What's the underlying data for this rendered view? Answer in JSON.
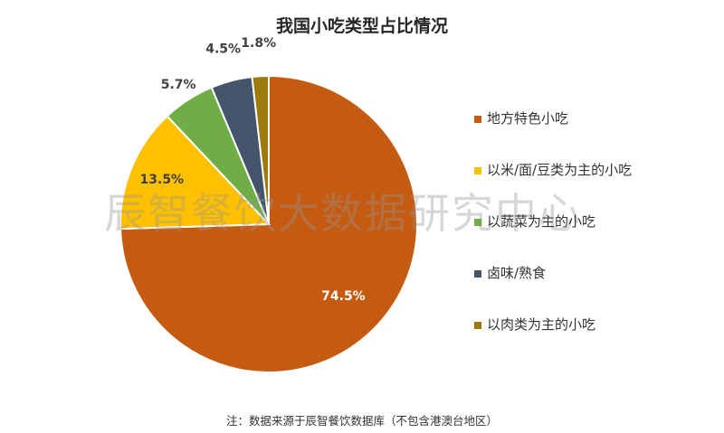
{
  "chart_data": {
    "type": "pie",
    "title": "我国小吃类型占比情况",
    "categories": [
      "地方特色小吃",
      "以米/面/豆类为主的小吃",
      "以蔬菜为主的小吃",
      "卤味/熟食",
      "以肉类为主的小吃"
    ],
    "values": [
      74.5,
      13.5,
      5.7,
      4.5,
      1.8
    ],
    "value_labels": [
      "74.5%",
      "13.5%",
      "5.7%",
      "4.5%",
      "1.8%"
    ],
    "colors": [
      "#C55A11",
      "#FFC000",
      "#70AD47",
      "#44546A",
      "#9C7A0B"
    ],
    "label_colors": [
      "#ffffff",
      "#404040",
      "#404040",
      "#404040",
      "#404040"
    ],
    "start_angle": "12 o'clock",
    "direction": "clockwise",
    "legend_position": "right"
  },
  "watermark": "辰智餐饮大数据研究中心",
  "footnote": "注：数据来源于辰智餐饮数据库（不包含港澳台地区）"
}
